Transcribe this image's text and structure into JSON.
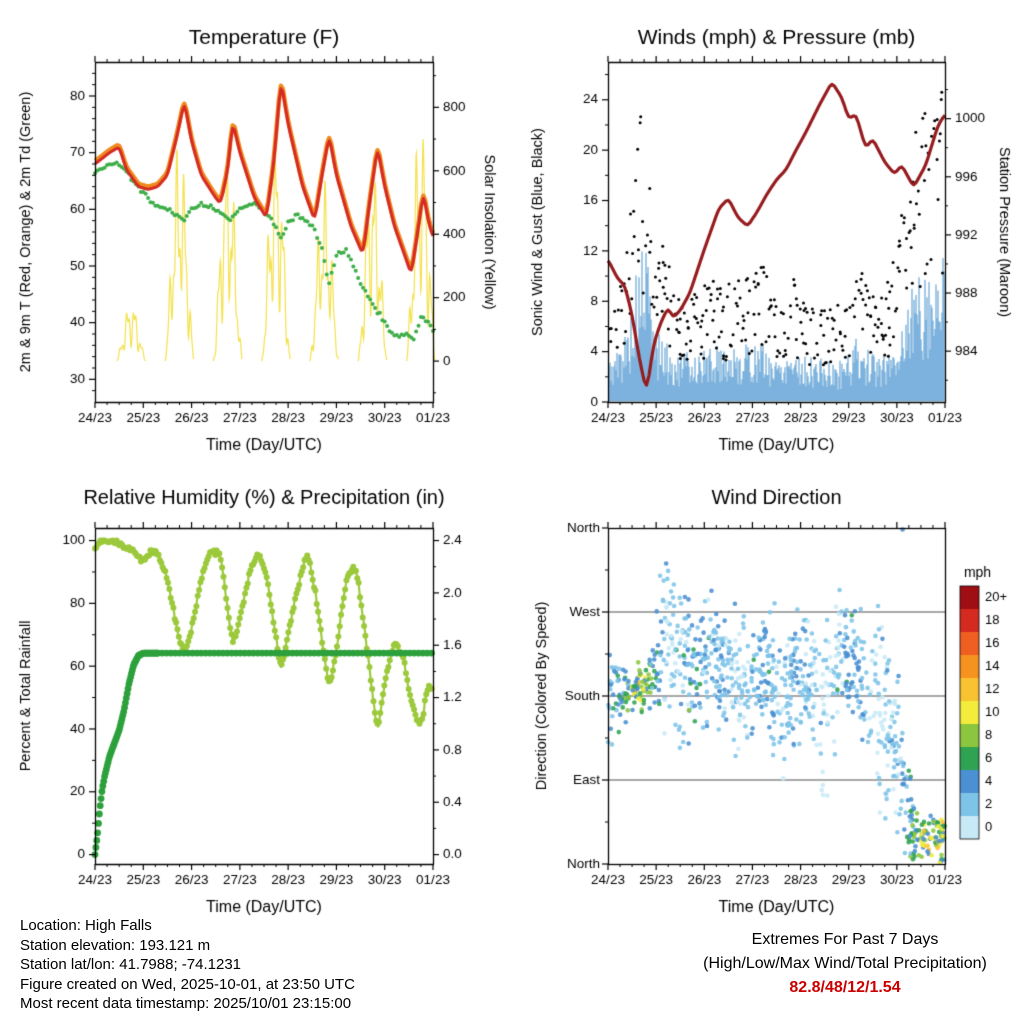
{
  "footer": {
    "lines": [
      "Location: High Falls",
      "Station elevation: 193.121 m",
      "Station lat/lon: 41.7988; -74.1231",
      "Figure created on Wed, 2025-10-01, at 23:50 UTC",
      "Most recent data timestamp: 2025/10/01 23:15:00"
    ]
  },
  "extremes": {
    "title": "Extremes For Past 7 Days",
    "subtitle": "(High/Low/Max Wind/Total Precipitation)",
    "values": "82.8/48/12/1.54",
    "color": "#cc0000"
  },
  "time_axis": {
    "label": "Time (Day/UTC)",
    "ticks": [
      "24/23",
      "25/23",
      "26/23",
      "27/23",
      "28/23",
      "29/23",
      "30/23",
      "01/23"
    ]
  },
  "chart_data": [
    {
      "id": "temperature",
      "type": "line",
      "title": "Temperature (F)",
      "xlabel": "Time (Day/UTC)",
      "ylabel_left": "2m & 9m T (Red, Orange) & 2m Td (Green)",
      "ylabel_right": "Solar Insolation (Yellow)",
      "ylim_left": [
        26,
        86
      ],
      "yticks_left": [
        30,
        40,
        50,
        60,
        70,
        80
      ],
      "ylim_right": [
        -129,
        943
      ],
      "yticks_right": [
        0,
        200,
        400,
        600,
        800
      ],
      "colors": {
        "t2m": "#d62a24",
        "t9m": "#f08a1d",
        "td": "#3fae49",
        "solar": "#f3e14d"
      },
      "series": {
        "t2m_f": {
          "x": [
            0,
            0.15,
            0.3,
            0.5,
            0.65,
            0.9,
            1.1,
            1.3,
            1.5,
            1.7,
            1.85,
            2.0,
            2.2,
            2.5,
            2.6,
            2.75,
            2.85,
            3.0,
            3.3,
            3.55,
            3.7,
            3.85,
            4.0,
            4.3,
            4.55,
            4.7,
            4.85,
            5.0,
            5.3,
            5.55,
            5.7,
            5.85,
            6.0,
            6.2,
            6.45,
            6.55,
            6.7,
            6.8,
            6.9,
            7.0
          ],
          "y": [
            68,
            69,
            70,
            71,
            67,
            64,
            63.5,
            64,
            66,
            73,
            79,
            72,
            66,
            62,
            61,
            67,
            75.5,
            70,
            62,
            58.5,
            68,
            82.8,
            75,
            64,
            58,
            66,
            73,
            66,
            57,
            52,
            62,
            71,
            64,
            57,
            51,
            48.5,
            57,
            63,
            58,
            55
          ]
        },
        "t9m_offset_f": 0.5,
        "td_f": {
          "x": [
            0,
            0.3,
            0.5,
            0.8,
            1.0,
            1.2,
            1.5,
            1.7,
            1.85,
            2.0,
            2.2,
            2.5,
            2.8,
            3.0,
            3.3,
            3.6,
            3.85,
            4.0,
            4.2,
            4.5,
            4.7,
            4.85,
            5.0,
            5.2,
            5.5,
            5.85,
            6.0,
            6.2,
            6.45,
            6.6,
            6.75,
            6.9,
            7.0
          ],
          "y": [
            66.5,
            68,
            68,
            65,
            63,
            61,
            60,
            59,
            58,
            60,
            61,
            60,
            58,
            60,
            61,
            59,
            55,
            58,
            59,
            57,
            53,
            47,
            52,
            53,
            47,
            42,
            40,
            37.5,
            38,
            37,
            41,
            40,
            38.5
          ]
        },
        "solar_daily_peak_wm2": [
          170,
          620,
          610,
          650,
          500,
          560,
          700
        ]
      }
    },
    {
      "id": "winds_pressure",
      "type": "line+scatter",
      "title": "Winds (mph) & Pressure (mb)",
      "xlabel": "Time (Day/UTC)",
      "ylabel_left": "Sonic Wind & Gust (Blue, Black)",
      "ylabel_right": "Station Pressure (Maroon)",
      "ylim_left": [
        0,
        27
      ],
      "yticks_left": [
        0,
        4,
        8,
        12,
        16,
        20,
        24
      ],
      "ylim_right": [
        980.5,
        1003.9
      ],
      "yticks_right": [
        984,
        988,
        992,
        996,
        1000
      ],
      "colors": {
        "wind": "#5a9fd4",
        "gust": "#000000",
        "pressure": "#951b1e"
      },
      "series": {
        "pressure_mb": {
          "x": [
            0,
            0.2,
            0.35,
            0.5,
            0.65,
            0.8,
            0.95,
            1.1,
            1.25,
            1.35,
            1.5,
            1.7,
            2.0,
            2.3,
            2.5,
            2.7,
            2.9,
            3.1,
            3.3,
            3.5,
            3.7,
            3.9,
            4.1,
            4.4,
            4.65,
            4.85,
            5.0,
            5.15,
            5.35,
            5.5,
            5.75,
            5.95,
            6.1,
            6.35,
            6.6,
            6.85,
            7.0
          ],
          "y": [
            990.3,
            989,
            988.5,
            986.5,
            983.5,
            981.2,
            984.5,
            986,
            987,
            986.3,
            986.8,
            988,
            991,
            993.8,
            994.5,
            993.2,
            992.6,
            993.6,
            994.8,
            995.8,
            996.5,
            997.8,
            999,
            1001,
            1002.5,
            1001.5,
            1000,
            1000.3,
            998,
            998.6,
            997,
            996.2,
            996.8,
            995.3,
            996.8,
            999.5,
            1000.3
          ]
        },
        "wind_mph_envelope": {
          "x": [
            0,
            0.2,
            0.4,
            0.55,
            0.7,
            0.8,
            0.9,
            1.0,
            1.2,
            1.4,
            1.7,
            2.0,
            2.3,
            2.6,
            2.9,
            3.2,
            3.5,
            3.8,
            4.1,
            4.4,
            4.7,
            5.0,
            5.2,
            5.4,
            5.7,
            6.0,
            6.15,
            6.3,
            6.5,
            6.7,
            6.85,
            7.0
          ],
          "y": [
            3,
            3.5,
            5,
            8,
            10,
            11,
            7,
            5,
            4,
            3,
            3.5,
            3.5,
            4,
            3.5,
            4,
            4,
            3,
            4,
            3,
            3,
            2.5,
            3.5,
            4.5,
            3.5,
            3,
            4.5,
            6,
            8,
            9.5,
            9,
            10,
            10.5
          ]
        },
        "gust_mph_envelope": {
          "x": [
            0,
            0.2,
            0.4,
            0.55,
            0.65,
            0.75,
            0.85,
            1.0,
            1.2,
            1.4,
            1.7,
            2.0,
            2.3,
            2.6,
            2.9,
            3.2,
            3.5,
            3.8,
            4.1,
            4.4,
            4.7,
            5.0,
            5.2,
            5.4,
            5.7,
            6.0,
            6.15,
            6.3,
            6.5,
            6.7,
            6.85,
            7.0
          ],
          "y": [
            7,
            8,
            12,
            18,
            23,
            22,
            18,
            12,
            13,
            8,
            9,
            9,
            10,
            9,
            10,
            11,
            8,
            10,
            8,
            8,
            7,
            9,
            12,
            10,
            8,
            12,
            16,
            20,
            24,
            23,
            25,
            24
          ]
        }
      }
    },
    {
      "id": "rh_precip",
      "type": "line",
      "title": "Relative Humidity (%) & Precipitation (in)",
      "xlabel": "Time (Day/UTC)",
      "ylabel_left": "Percent & Total Rainfall",
      "ylim_left": [
        -3,
        104
      ],
      "yticks_left": [
        0,
        20,
        40,
        60,
        80,
        100
      ],
      "yticks_right": [
        0.0,
        0.4,
        0.8,
        1.2,
        1.6,
        2.0,
        2.4
      ],
      "right_max": 2.4,
      "colors": {
        "rh": "#9cc93c",
        "rain": "#2da03c"
      },
      "series": {
        "rh_pct": {
          "x": [
            0,
            0.1,
            0.4,
            0.6,
            0.8,
            1.0,
            1.15,
            1.3,
            1.5,
            1.7,
            1.85,
            2.0,
            2.2,
            2.4,
            2.6,
            2.85,
            3.0,
            3.2,
            3.4,
            3.6,
            3.85,
            4.0,
            4.2,
            4.4,
            4.6,
            4.85,
            5.0,
            5.2,
            5.4,
            5.6,
            5.85,
            6.0,
            6.2,
            6.4,
            6.55,
            6.75,
            6.9,
            7.0
          ],
          "y": [
            97,
            100,
            100,
            98,
            97,
            93,
            97,
            96,
            88,
            72,
            63,
            72,
            88,
            97,
            96,
            66,
            75,
            90,
            97,
            85,
            58,
            70,
            85,
            97,
            80,
            52,
            65,
            88,
            92,
            70,
            38,
            55,
            68,
            62,
            48,
            40,
            55,
            52
          ]
        },
        "rain_in": {
          "x": [
            0,
            0.05,
            0.1,
            0.15,
            0.2,
            0.3,
            0.4,
            0.5,
            0.6,
            0.7,
            0.8,
            0.9,
            1.0,
            7.0
          ],
          "y": [
            0,
            0.15,
            0.35,
            0.5,
            0.6,
            0.75,
            0.85,
            0.95,
            1.1,
            1.3,
            1.45,
            1.52,
            1.54,
            1.54
          ]
        },
        "total_rain_in": 1.54
      }
    },
    {
      "id": "wind_direction",
      "type": "scatter",
      "title": "Wind Direction",
      "xlabel": "Time (Day/UTC)",
      "ylabel_left": "Direction (Colored By Speed)",
      "ytick_values": [
        360,
        270,
        180,
        90,
        0
      ],
      "ytick_labels": [
        "North",
        "West",
        "South",
        "East",
        "North"
      ],
      "colorbar": {
        "title": "mph",
        "labels": [
          "20+",
          "18",
          "16",
          "14",
          "12",
          "10",
          "8",
          "6",
          "4",
          "2",
          "0"
        ],
        "colors_top_to_bottom": [
          "#9e0e13",
          "#d42a20",
          "#ef5f21",
          "#f6921e",
          "#f8c231",
          "#f3ec3c",
          "#8cc63f",
          "#2fa352",
          "#4a90d2",
          "#7ec4e8",
          "#c8e9f6"
        ]
      },
      "series": {
        "dir_keyframes": {
          "x": [
            0,
            0.3,
            0.55,
            0.75,
            0.95,
            1.2,
            1.5,
            1.8,
            2.1,
            2.4,
            2.7,
            3.0,
            3.3,
            3.6,
            3.9,
            4.2,
            4.5,
            4.8,
            5.1,
            5.4,
            5.7,
            6.0,
            6.2,
            6.4,
            6.6,
            6.8,
            7.0
          ],
          "dir_deg": [
            180,
            185,
            185,
            190,
            200,
            250,
            210,
            200,
            230,
            210,
            190,
            200,
            215,
            170,
            200,
            195,
            170,
            210,
            215,
            190,
            150,
            120,
            60,
            30,
            25,
            30,
            25
          ],
          "spread_deg": [
            50,
            30,
            18,
            20,
            40,
            80,
            70,
            45,
            70,
            50,
            80,
            55,
            45,
            90,
            60,
            50,
            90,
            60,
            45,
            70,
            90,
            80,
            50,
            25,
            20,
            22,
            20
          ],
          "speed_mph": [
            4,
            6,
            9,
            10,
            6,
            2,
            3,
            5,
            3,
            4,
            2,
            4,
            4,
            2,
            4,
            3,
            2,
            3,
            5,
            3,
            2,
            3,
            5,
            8,
            10,
            10,
            9
          ]
        },
        "n_points": 1000
      }
    }
  ]
}
